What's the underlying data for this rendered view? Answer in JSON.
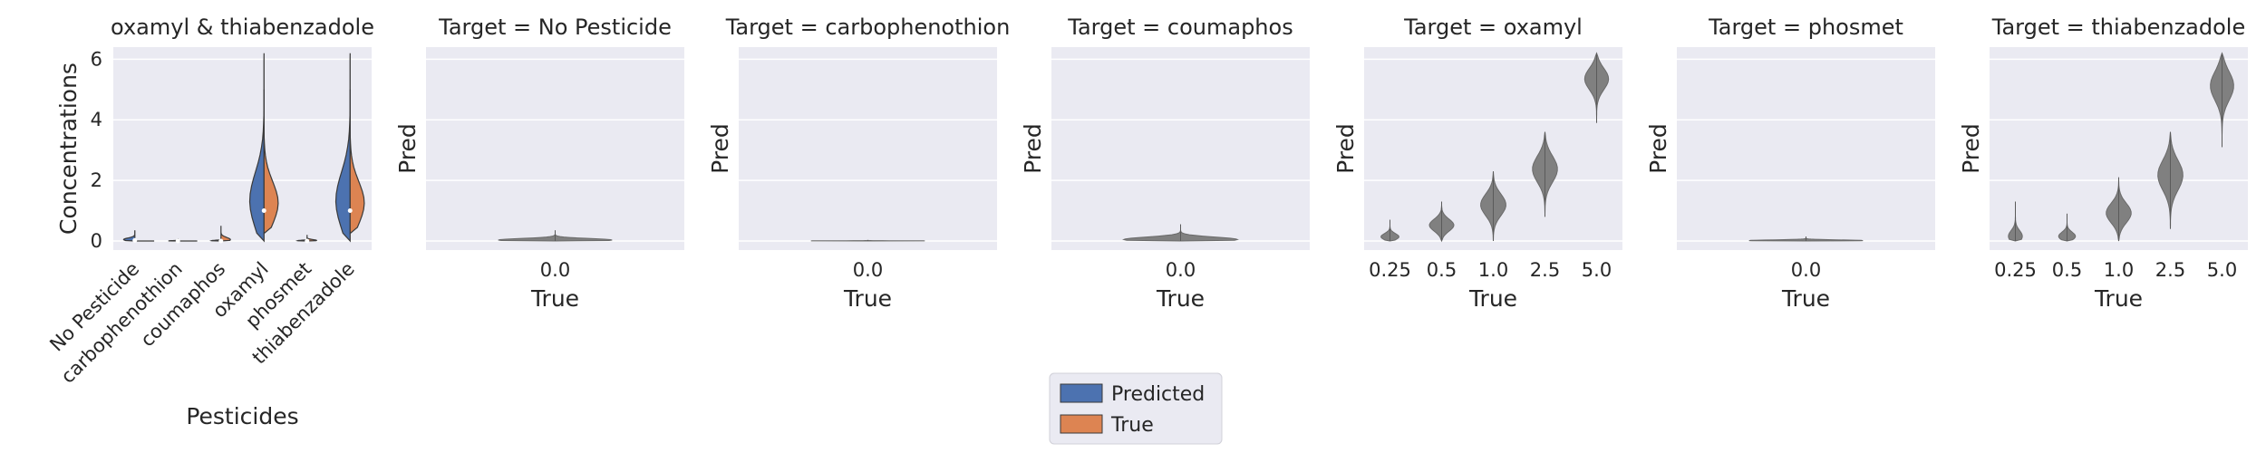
{
  "chart_data": [
    {
      "type": "violin",
      "title": "oxamyl & thiabenzadole",
      "xlabel": "Pesticides",
      "ylabel": "Concentrations",
      "categories": [
        "No Pesticide",
        "carbophenothion",
        "coumaphos",
        "oxamyl",
        "phosmet",
        "thiabenzadole"
      ],
      "ylim": [
        -0.3,
        6.4
      ],
      "yticks": [
        "0",
        "2",
        "4",
        "6"
      ],
      "split": true,
      "series": [
        {
          "name": "Predicted",
          "color": "#4c72b0",
          "values": [
            {
              "min": 0.0,
              "max": 0.35,
              "median": 0.02
            },
            {
              "min": 0.0,
              "max": 0.05,
              "median": 0.0
            },
            {
              "min": 0.0,
              "max": 0.1,
              "median": 0.0
            },
            {
              "min": 0.0,
              "max": 6.2,
              "median": 1.0
            },
            {
              "min": 0.0,
              "max": 0.1,
              "median": 0.0
            },
            {
              "min": 0.0,
              "max": 6.2,
              "median": 1.0
            }
          ]
        },
        {
          "name": "True",
          "color": "#dd8452",
          "values": [
            {
              "min": 0.0,
              "max": 0.0,
              "median": 0.0
            },
            {
              "min": 0.0,
              "max": 0.0,
              "median": 0.0
            },
            {
              "min": 0.0,
              "max": 0.5,
              "median": 0.0
            },
            {
              "min": 0.25,
              "max": 5.0,
              "median": 1.0
            },
            {
              "min": 0.0,
              "max": 0.2,
              "median": 0.0
            },
            {
              "min": 0.25,
              "max": 5.0,
              "median": 1.0
            }
          ]
        }
      ]
    },
    {
      "type": "violin",
      "title": "Target = No Pesticide",
      "xlabel": "True",
      "ylabel": "Pred",
      "categories": [
        "0.0"
      ],
      "ylim": [
        -0.3,
        6.4
      ],
      "values": [
        {
          "min": 0.0,
          "max": 0.35,
          "median": 0.0
        }
      ]
    },
    {
      "type": "violin",
      "title": "Target = carbophenothion",
      "xlabel": "True",
      "ylabel": "Pred",
      "categories": [
        "0.0"
      ],
      "ylim": [
        -0.3,
        6.4
      ],
      "values": [
        {
          "min": 0.0,
          "max": 0.03,
          "median": 0.0
        }
      ]
    },
    {
      "type": "violin",
      "title": "Target = coumaphos",
      "xlabel": "True",
      "ylabel": "Pred",
      "categories": [
        "0.0"
      ],
      "ylim": [
        -0.3,
        6.4
      ],
      "values": [
        {
          "min": 0.0,
          "max": 0.55,
          "median": 0.0
        }
      ]
    },
    {
      "type": "violin",
      "title": "Target = oxamyl",
      "xlabel": "True",
      "ylabel": "Pred",
      "categories": [
        "0.25",
        "0.5",
        "1.0",
        "2.5",
        "5.0"
      ],
      "ylim": [
        -0.3,
        6.4
      ],
      "values": [
        {
          "min": 0.0,
          "max": 0.7,
          "median": 0.1
        },
        {
          "min": 0.0,
          "max": 1.3,
          "median": 0.5
        },
        {
          "min": 0.0,
          "max": 2.3,
          "median": 1.2
        },
        {
          "min": 0.8,
          "max": 3.6,
          "median": 2.4
        },
        {
          "min": 3.9,
          "max": 6.2,
          "median": 5.4
        }
      ]
    },
    {
      "type": "violin",
      "title": "Target = phosmet",
      "xlabel": "True",
      "ylabel": "Pred",
      "categories": [
        "0.0"
      ],
      "ylim": [
        -0.3,
        6.4
      ],
      "values": [
        {
          "min": 0.0,
          "max": 0.15,
          "median": 0.0
        }
      ]
    },
    {
      "type": "violin",
      "title": "Target = thiabenzadole",
      "xlabel": "True",
      "ylabel": "Pred",
      "categories": [
        "0.25",
        "0.5",
        "1.0",
        "2.5",
        "5.0"
      ],
      "ylim": [
        -0.3,
        6.4
      ],
      "values": [
        {
          "min": 0.0,
          "max": 1.3,
          "median": 0.05
        },
        {
          "min": 0.0,
          "max": 0.9,
          "median": 0.1
        },
        {
          "min": 0.0,
          "max": 2.1,
          "median": 0.9
        },
        {
          "min": 0.4,
          "max": 3.6,
          "median": 2.2
        },
        {
          "min": 3.1,
          "max": 6.2,
          "median": 5.2
        }
      ]
    }
  ],
  "legend": {
    "placement": "bottom-center",
    "entries": [
      {
        "label": "Predicted",
        "color": "#4c72b0"
      },
      {
        "label": "True",
        "color": "#dd8452"
      }
    ]
  },
  "style": {
    "panel_background": "#eaeaf2",
    "grid_color": "#ffffff",
    "violin_gray": "#808080"
  }
}
